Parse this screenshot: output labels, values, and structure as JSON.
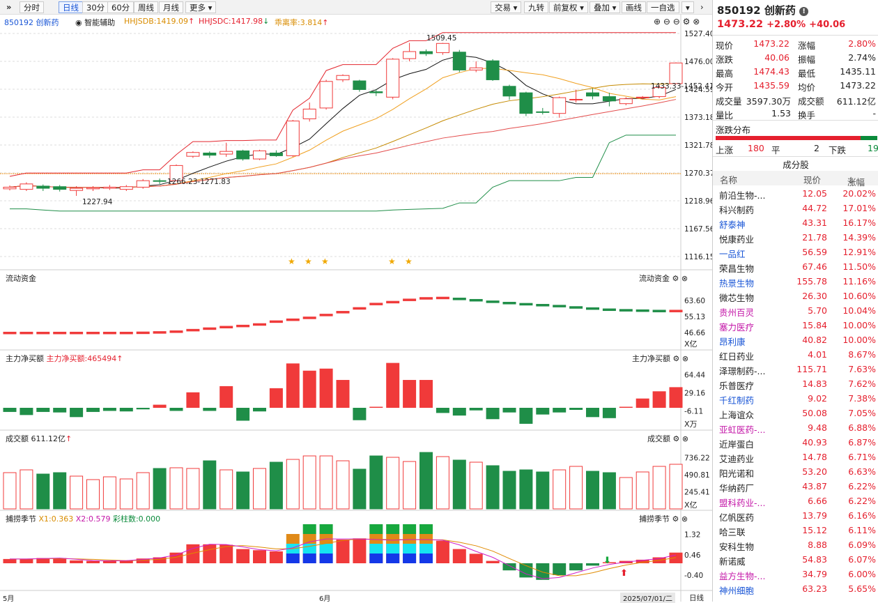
{
  "toolbar": {
    "menu_icon": "»",
    "items": [
      "分时",
      "日线",
      "30分",
      "60分",
      "周线",
      "月线",
      "更多"
    ],
    "active": "日线",
    "right_items": [
      "交易",
      "九转",
      "前复权",
      "叠加",
      "画线",
      "一自选"
    ]
  },
  "header": {
    "code_name": "850192 创新药",
    "assist": "智能辅助",
    "hhjsdb": "HHJSDB:1419.09",
    "hhjsdc": "HHJSDC:1417.98",
    "deviation": "乖离率:3.814"
  },
  "price_axis": [
    "1527.40",
    "1476.00",
    "1424.59",
    "1373.18",
    "1321.78",
    "1270.37",
    "1218.96",
    "1167.56",
    "1116.15"
  ],
  "annotations": {
    "high": "1509.45",
    "low": "1227.94",
    "range": "1266.23-1271.83",
    "current": "1433.33-1452.41"
  },
  "panels": {
    "flow": {
      "title": "流动资金",
      "axis": [
        "63.60",
        "55.13",
        "46.66"
      ],
      "unit": "X亿"
    },
    "net": {
      "title": "主力净买额",
      "value": "主力净买额:465494",
      "axis": [
        "64.44",
        "29.16",
        "-6.11"
      ],
      "unit": "X万"
    },
    "volume": {
      "title": "成交额",
      "value": "611.12亿",
      "axis": [
        "736.22",
        "490.81",
        "245.41"
      ],
      "unit": "X亿"
    },
    "season": {
      "title": "捕捞季节",
      "x1": "X1:0.363",
      "x2": "X2:0.579",
      "bars": "彩柱数:0.000",
      "axis": [
        "1.32",
        "0.46",
        "-0.40"
      ]
    }
  },
  "date_axis": {
    "may": "5月",
    "june": "6月",
    "current": "2025/07/01/二",
    "period": "日线"
  },
  "quote": {
    "title": "850192 创新药",
    "price": "1473.22",
    "pct": "+2.80%",
    "chg": "+40.06",
    "rows": [
      [
        "现价",
        "1473.22",
        "涨幅",
        "2.80%"
      ],
      [
        "涨跌",
        "40.06",
        "振幅",
        "2.74%"
      ],
      [
        "最高",
        "1474.43",
        "最低",
        "1435.11"
      ],
      [
        "今开",
        "1435.59",
        "均价",
        "1473.22"
      ],
      [
        "成交量",
        "3597.30万",
        "成交额",
        "611.12亿"
      ],
      [
        "量比",
        "1.53",
        "换手",
        "-"
      ]
    ]
  },
  "distribution": {
    "title": "涨跌分布",
    "up_label": "上涨",
    "up": "180",
    "flat_label": "平",
    "flat": "2",
    "down_label": "下跌",
    "down": "19"
  },
  "constituents": {
    "title": "成分股",
    "headers": [
      "名称",
      "现价",
      "涨幅"
    ],
    "rows": [
      {
        "name": "前沿生物-...",
        "price": "12.05",
        "pct": "20.02%",
        "c": "black"
      },
      {
        "name": "科兴制药",
        "price": "44.72",
        "pct": "17.01%",
        "c": "black"
      },
      {
        "name": "舒泰神",
        "price": "43.31",
        "pct": "16.17%",
        "c": "blue"
      },
      {
        "name": "悦康药业",
        "price": "21.78",
        "pct": "14.39%",
        "c": "black"
      },
      {
        "name": "一品红",
        "price": "56.59",
        "pct": "12.91%",
        "c": "blue"
      },
      {
        "name": "荣昌生物",
        "price": "67.46",
        "pct": "11.50%",
        "c": "black"
      },
      {
        "name": "热景生物",
        "price": "155.78",
        "pct": "11.16%",
        "c": "blue"
      },
      {
        "name": "微芯生物",
        "price": "26.30",
        "pct": "10.60%",
        "c": "black"
      },
      {
        "name": "贵州百灵",
        "price": "5.70",
        "pct": "10.04%",
        "c": "magenta"
      },
      {
        "name": "塞力医疗",
        "price": "15.84",
        "pct": "10.00%",
        "c": "magenta"
      },
      {
        "name": "昂利康",
        "price": "40.82",
        "pct": "10.00%",
        "c": "blue"
      },
      {
        "name": "红日药业",
        "price": "4.01",
        "pct": "8.67%",
        "c": "black"
      },
      {
        "name": "泽璟制药-...",
        "price": "115.71",
        "pct": "7.63%",
        "c": "black"
      },
      {
        "name": "乐普医疗",
        "price": "14.83",
        "pct": "7.62%",
        "c": "black"
      },
      {
        "name": "千红制药",
        "price": "9.02",
        "pct": "7.38%",
        "c": "blue"
      },
      {
        "name": "上海谊众",
        "price": "50.08",
        "pct": "7.05%",
        "c": "black"
      },
      {
        "name": "亚虹医药-...",
        "price": "9.48",
        "pct": "6.88%",
        "c": "magenta"
      },
      {
        "name": "近岸蛋白",
        "price": "40.93",
        "pct": "6.87%",
        "c": "black"
      },
      {
        "name": "艾迪药业",
        "price": "14.78",
        "pct": "6.71%",
        "c": "black"
      },
      {
        "name": "阳光诺和",
        "price": "53.20",
        "pct": "6.63%",
        "c": "black"
      },
      {
        "name": "华纳药厂",
        "price": "43.87",
        "pct": "6.22%",
        "c": "black"
      },
      {
        "name": "盟科药业-...",
        "price": "6.66",
        "pct": "6.22%",
        "c": "magenta"
      },
      {
        "name": "亿帆医药",
        "price": "13.79",
        "pct": "6.16%",
        "c": "black"
      },
      {
        "name": "哈三联",
        "price": "15.12",
        "pct": "6.11%",
        "c": "black"
      },
      {
        "name": "安科生物",
        "price": "8.88",
        "pct": "6.09%",
        "c": "black"
      },
      {
        "name": "新诺威",
        "price": "54.83",
        "pct": "6.07%",
        "c": "black"
      },
      {
        "name": "益方生物-...",
        "price": "34.79",
        "pct": "6.00%",
        "c": "magenta"
      },
      {
        "name": "神州细胞",
        "price": "63.23",
        "pct": "5.65%",
        "c": "blue"
      }
    ]
  },
  "chart_data": {
    "type": "candlestick",
    "candles": [
      [
        1241,
        1244,
        1247,
        1238
      ],
      [
        1240,
        1250,
        1253,
        1237
      ],
      [
        1246,
        1242,
        1249,
        1237
      ],
      [
        1245,
        1240,
        1248,
        1236
      ],
      [
        1238,
        1242,
        1246,
        1228
      ],
      [
        1241,
        1243,
        1246,
        1237
      ],
      [
        1242,
        1244,
        1248,
        1239
      ],
      [
        1240,
        1245,
        1248,
        1237
      ],
      [
        1244,
        1256,
        1259,
        1241
      ],
      [
        1256,
        1255,
        1260,
        1250
      ],
      [
        1256,
        1284,
        1286,
        1255
      ],
      [
        1301,
        1308,
        1310,
        1298
      ],
      [
        1307,
        1303,
        1310,
        1298
      ],
      [
        1305,
        1310,
        1326,
        1300
      ],
      [
        1311,
        1296,
        1313,
        1293
      ],
      [
        1296,
        1311,
        1313,
        1294
      ],
      [
        1307,
        1302,
        1312,
        1300
      ],
      [
        1302,
        1366,
        1368,
        1300
      ],
      [
        1370,
        1388,
        1400,
        1365
      ],
      [
        1390,
        1439,
        1442,
        1387
      ],
      [
        1442,
        1450,
        1452,
        1438
      ],
      [
        1440,
        1424,
        1442,
        1420
      ],
      [
        1420,
        1418,
        1424,
        1412
      ],
      [
        1410,
        1480,
        1482,
        1406
      ],
      [
        1481,
        1494,
        1510,
        1476
      ],
      [
        1494,
        1490,
        1498,
        1486
      ],
      [
        1492,
        1509,
        1510,
        1488
      ],
      [
        1493,
        1460,
        1497,
        1456
      ],
      [
        1460,
        1464,
        1476,
        1456
      ],
      [
        1477,
        1442,
        1480,
        1440
      ],
      [
        1430,
        1412,
        1433,
        1405
      ],
      [
        1418,
        1380,
        1420,
        1375
      ],
      [
        1383,
        1382,
        1390,
        1378
      ],
      [
        1380,
        1409,
        1411,
        1372
      ],
      [
        1405,
        1406,
        1424,
        1400
      ],
      [
        1418,
        1412,
        1426,
        1406
      ],
      [
        1411,
        1403,
        1418,
        1393
      ],
      [
        1398,
        1407,
        1410,
        1395
      ],
      [
        1409,
        1410,
        1412,
        1406
      ],
      [
        1411,
        1428,
        1432,
        1408
      ],
      [
        1435,
        1473,
        1474,
        1435
      ]
    ],
    "volume": [
      520,
      560,
      500,
      520,
      470,
      420,
      460,
      430,
      520,
      580,
      590,
      580,
      690,
      560,
      530,
      580,
      670,
      710,
      760,
      760,
      690,
      570,
      760,
      740,
      680,
      810,
      750,
      700,
      670,
      620,
      540,
      560,
      530,
      560,
      610,
      540,
      520,
      450,
      530,
      610,
      640
    ],
    "net_inflow": [
      -8,
      -14,
      -8,
      -9,
      -18,
      -8,
      -6,
      -7,
      -3,
      6,
      -6,
      30,
      -6,
      42,
      -25,
      -7,
      38,
      86,
      72,
      76,
      54,
      -24,
      0,
      87,
      54,
      54,
      -10,
      -15,
      -5,
      -22,
      -9,
      -31,
      -13,
      -9,
      -4,
      -18,
      -20,
      0,
      18,
      32,
      40
    ],
    "flow": [
      46.5,
      46.5,
      46.5,
      46.5,
      46.5,
      46.5,
      46.5,
      46.5,
      46.6,
      46.8,
      47.2,
      48.0,
      48.8,
      49.6,
      50.2,
      51.0,
      52.5,
      53.5,
      54.5,
      56.0,
      57.5,
      59.5,
      61.8,
      62.8,
      64.0,
      64.8,
      65.0,
      64.5,
      63.8,
      63.0,
      62.3,
      61.7,
      61.2,
      60.7,
      60.0,
      59.4,
      58.8,
      58.5,
      58.3,
      58.1,
      58.1
    ]
  }
}
